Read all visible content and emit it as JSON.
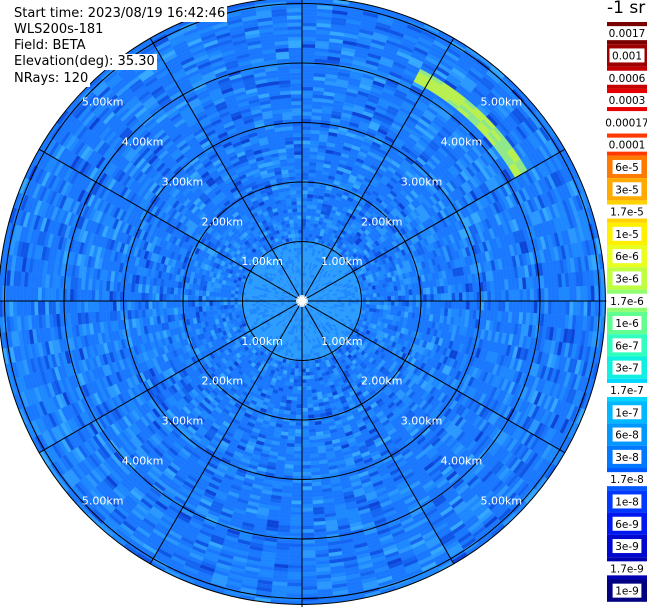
{
  "header": {
    "start_time": "Start time: 2023/08/19 16:42:46",
    "instrument": "WLS200s-181",
    "field": "Field: BETA",
    "elevation": "Elevation(deg): 35.30",
    "nrays": "NRays: 120"
  },
  "colorbar": {
    "title": "-1 sr",
    "labels": [
      "0.0017",
      "0.001",
      "0.0006",
      "0.0003",
      "0.00017",
      "0.0001",
      "6e-5",
      "3e-5",
      "1.7e-5",
      "1e-5",
      "6e-6",
      "3e-6",
      "1.7e-6",
      "1e-6",
      "6e-7",
      "3e-7",
      "1.7e-7",
      "1e-7",
      "6e-8",
      "3e-8",
      "1.7e-8",
      "1e-8",
      "6e-9",
      "3e-9",
      "1.7e-9",
      "1e-9"
    ],
    "colors": [
      "#7a0000",
      "#9c0000",
      "#c40000",
      "#e80000",
      "#ffffff",
      "#ff3a00",
      "#ff7a00",
      "#ffaa00",
      "#ffd200",
      "#fff000",
      "#e8ff20",
      "#c0ff40",
      "#90ff70",
      "#60ff90",
      "#30ffc0",
      "#10f0e0",
      "#00d8ff",
      "#00b8ff",
      "#0098ff",
      "#0078ff",
      "#0058ff",
      "#0038ff",
      "#0018f0",
      "#0008d0",
      "#0000b0",
      "#000080"
    ]
  },
  "chart_data": {
    "type": "heatmap",
    "title": "",
    "projection": "polar-ppi",
    "range_rings_km": [
      1,
      2,
      3,
      4,
      5
    ],
    "range_labels": [
      "1.00km",
      "2.00km",
      "3.00km",
      "4.00km",
      "5.00km"
    ],
    "max_range_km": 5.1,
    "nrays": 120,
    "spoke_interval_deg": 30,
    "field": "BETA",
    "units": "-1 sr",
    "elevation_deg": 35.3,
    "dominant_value": "1e-7",
    "feature": {
      "description_value": "3e-6",
      "range_km": [
        4.15,
        4.4
      ],
      "azimuth_deg": [
        25,
        58
      ]
    }
  }
}
